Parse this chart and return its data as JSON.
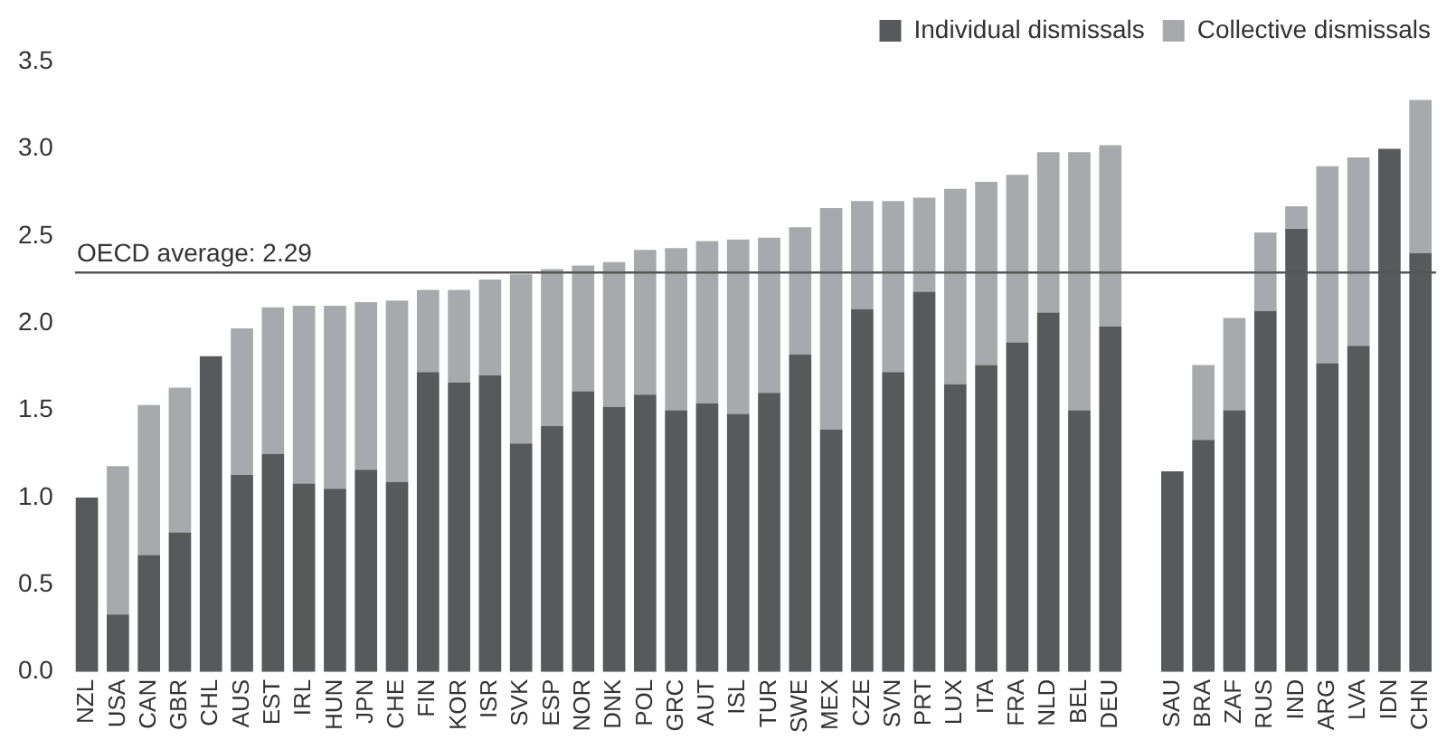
{
  "chart_data": {
    "type": "bar",
    "stacked": true,
    "categories": [
      "NZL",
      "USA",
      "CAN",
      "GBR",
      "CHL",
      "AUS",
      "EST",
      "IRL",
      "HUN",
      "JPN",
      "CHE",
      "FIN",
      "KOR",
      "ISR",
      "SVK",
      "ESP",
      "NOR",
      "DNK",
      "POL",
      "GRC",
      "AUT",
      "ISL",
      "TUR",
      "SWE",
      "MEX",
      "CZE",
      "SVN",
      "PRT",
      "LUX",
      "ITA",
      "FRA",
      "NLD",
      "BEL",
      "DEU",
      null,
      "SAU",
      "BRA",
      "ZAF",
      "RUS",
      "IND",
      "ARG",
      "LVA",
      "IDN",
      "CHN"
    ],
    "series": [
      {
        "name": "Individual dismissals",
        "color": "#58595b",
        "values": [
          1.0,
          0.33,
          0.67,
          0.8,
          1.81,
          1.13,
          1.25,
          1.08,
          1.05,
          1.16,
          1.09,
          1.72,
          1.66,
          1.7,
          1.31,
          1.41,
          1.61,
          1.52,
          1.59,
          1.5,
          1.54,
          1.48,
          1.6,
          1.82,
          1.39,
          2.08,
          1.72,
          2.18,
          1.65,
          1.76,
          1.89,
          2.06,
          1.5,
          1.98,
          null,
          1.15,
          1.33,
          1.5,
          2.07,
          2.54,
          1.77,
          1.87,
          3.0,
          2.4
        ]
      },
      {
        "name": "Collective dismissals",
        "color": "#a7a9ac",
        "values": [
          null,
          0.85,
          0.86,
          0.83,
          null,
          0.84,
          0.84,
          1.02,
          1.05,
          0.96,
          1.04,
          0.47,
          0.53,
          0.55,
          0.97,
          0.9,
          0.72,
          0.83,
          0.83,
          0.93,
          0.93,
          1.0,
          0.89,
          0.73,
          1.27,
          0.62,
          0.98,
          0.54,
          1.12,
          1.05,
          0.96,
          0.92,
          1.48,
          1.04,
          null,
          null,
          0.43,
          0.53,
          0.45,
          0.13,
          1.13,
          1.08,
          null,
          0.88
        ]
      }
    ],
    "ylim": [
      0,
      3.5
    ],
    "yticks": [
      {
        "value": 0,
        "label": "0.0"
      },
      0.5,
      {
        "value": 1,
        "label": "1.0"
      },
      1.5,
      {
        "value": 2,
        "label": "2.0"
      },
      2.5,
      {
        "value": 3,
        "label": "3.0"
      },
      3.5
    ],
    "ref_lines": [
      {
        "axis": "y",
        "value": 2.29,
        "label": "OECD average: 2.29",
        "color": "#555555"
      }
    ],
    "legend": "top right",
    "grid": false
  }
}
